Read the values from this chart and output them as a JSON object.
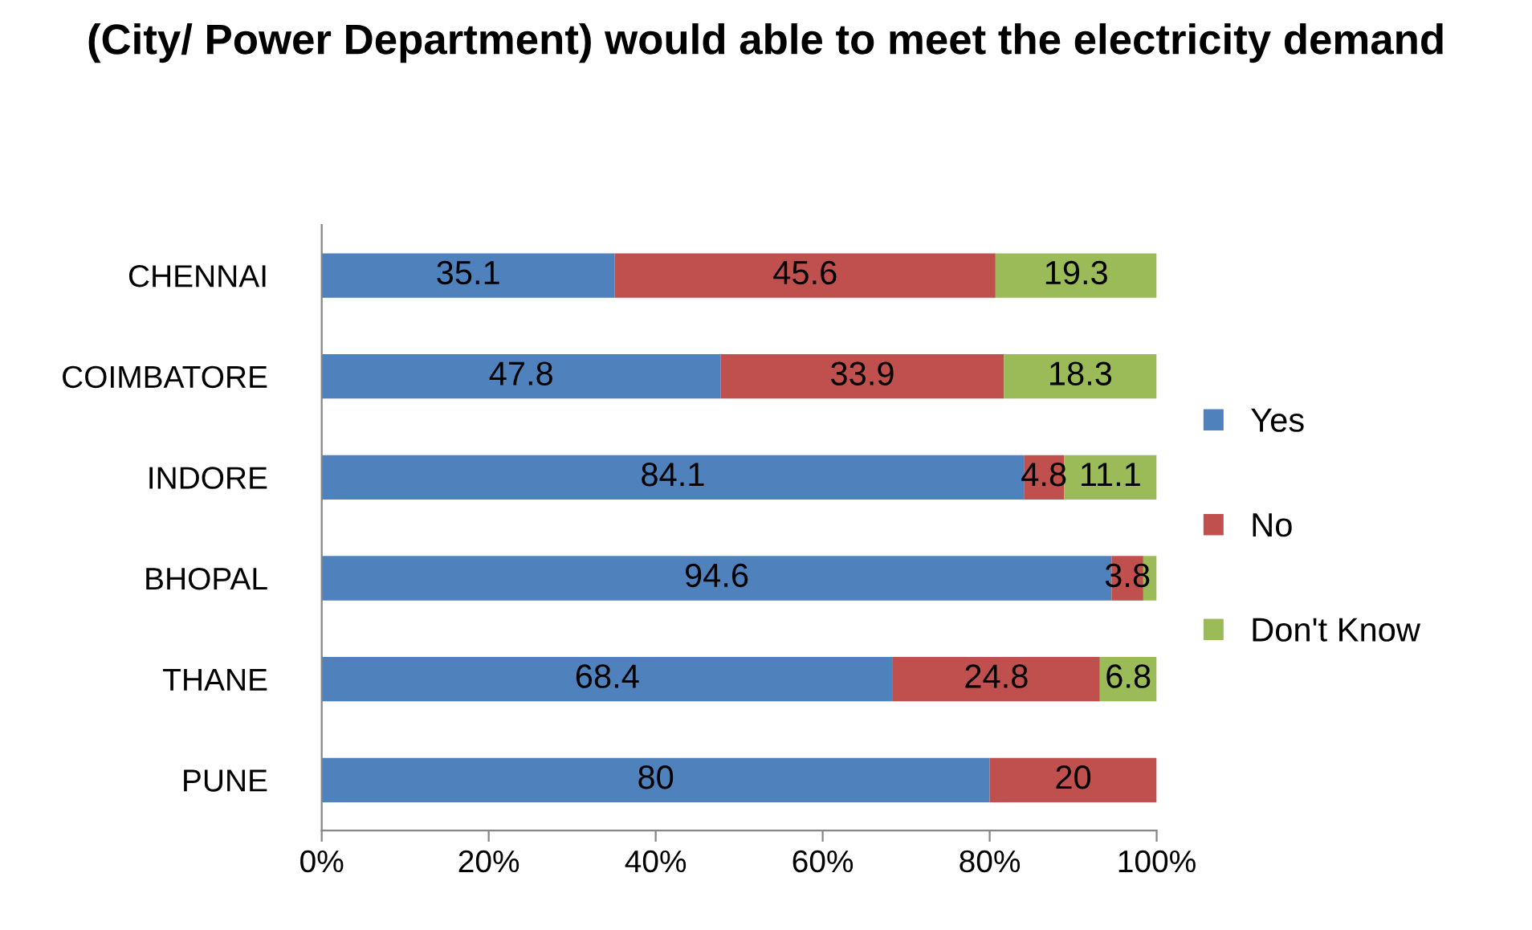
{
  "chart_data": {
    "type": "bar",
    "orientation": "horizontal",
    "stacked": true,
    "title": "(City/ Power Department) would able to meet the electricity demand",
    "categories": [
      "CHENNAI",
      "COIMBATORE",
      "INDORE",
      "BHOPAL",
      "THANE",
      "PUNE"
    ],
    "series": [
      {
        "name": "Yes",
        "color": "#4f81bd",
        "values": [
          35.1,
          47.8,
          84.1,
          94.6,
          68.4,
          80
        ],
        "value_labels": [
          "35.1",
          "47.8",
          "84.1",
          "94.6",
          "68.4",
          "80"
        ]
      },
      {
        "name": "No",
        "color": "#c0504d",
        "values": [
          45.6,
          33.9,
          4.8,
          3.8,
          24.8,
          20
        ],
        "value_labels": [
          "45.6",
          "33.9",
          "4.8",
          "3.8",
          "24.8",
          "20"
        ]
      },
      {
        "name": "Don't Know",
        "color": "#9bbb59",
        "values": [
          19.3,
          18.3,
          11.1,
          1.6,
          6.8,
          null
        ],
        "value_labels": [
          "19.3",
          "18.3",
          "11.1",
          null,
          "6.8",
          null
        ]
      }
    ],
    "xlim": [
      0,
      100
    ],
    "xticks": [
      {
        "value": 0,
        "label": "0%"
      },
      {
        "value": 20,
        "label": "20%"
      },
      {
        "value": 40,
        "label": "40%"
      },
      {
        "value": 60,
        "label": "60%"
      },
      {
        "value": 80,
        "label": "80%"
      },
      {
        "value": 100,
        "label": "100%"
      }
    ],
    "grid": false,
    "legend": "right"
  }
}
